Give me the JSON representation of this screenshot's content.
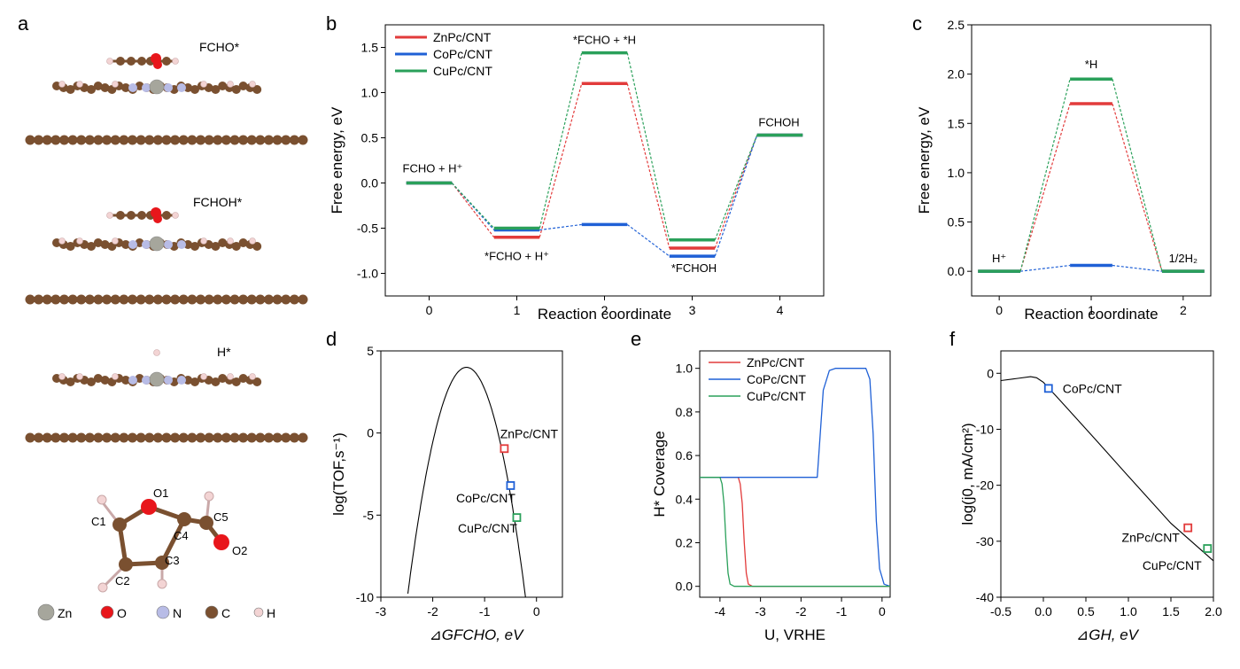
{
  "panels": {
    "a": {
      "letter": "a",
      "labels": [
        "FCHO*",
        "FCHOH*",
        "H*"
      ],
      "atom_labels": [
        "O1",
        "C1",
        "C2",
        "C3",
        "C4",
        "C5",
        "O2"
      ],
      "legend": [
        {
          "name": "Zn",
          "color": "#a6a69c"
        },
        {
          "name": "O",
          "color": "#e8161b"
        },
        {
          "name": "N",
          "color": "#b8bce6"
        },
        {
          "name": "C",
          "color": "#7a5030"
        },
        {
          "name": "H",
          "color": "#f3d4d4"
        }
      ]
    }
  },
  "colors": {
    "zn": "#e23b3b",
    "co": "#1f60d6",
    "cu": "#2aa05a",
    "line": "#000000"
  },
  "chart_data": [
    {
      "panel": "b",
      "type": "line",
      "xlabel": "Reaction coordinate",
      "ylabel": "Free energy, eV",
      "xlim": [
        -0.5,
        4.5
      ],
      "ylim": [
        -1.25,
        1.75
      ],
      "xticks": [
        0,
        1,
        2,
        3,
        4
      ],
      "yticks": [
        -1.0,
        -0.5,
        0.0,
        0.5,
        1.0,
        1.5
      ],
      "grid": false,
      "legend_position": "top-left",
      "series": [
        {
          "name": "ZnPc/CNT",
          "color": "#e23b3b",
          "x": [
            0,
            1,
            2,
            3,
            4
          ],
          "y": [
            0.0,
            -0.6,
            1.1,
            -0.72,
            0.53
          ]
        },
        {
          "name": "CoPc/CNT",
          "color": "#1f60d6",
          "x": [
            0,
            1,
            2,
            3,
            4
          ],
          "y": [
            0.0,
            -0.52,
            -0.46,
            -0.81,
            0.53
          ]
        },
        {
          "name": "CuPc/CNT",
          "color": "#2aa05a",
          "x": [
            0,
            1,
            2,
            3,
            4
          ],
          "y": [
            0.0,
            -0.5,
            1.44,
            -0.63,
            0.53
          ]
        }
      ],
      "annotations": [
        {
          "text": "FCHO + H⁺",
          "x": 0,
          "y": 0.0
        },
        {
          "text": "*FCHO + H⁺",
          "x": 1,
          "y": -0.6
        },
        {
          "text": "*FCHO + *H",
          "x": 2,
          "y": 1.44
        },
        {
          "text": "*FCHOH",
          "x": 3,
          "y": -0.81
        },
        {
          "text": "FCHOH",
          "x": 4,
          "y": 0.53
        }
      ]
    },
    {
      "panel": "c",
      "type": "line",
      "xlabel": "Reaction coordinate",
      "ylabel": "Free energy, eV",
      "xlim": [
        -0.3,
        2.3
      ],
      "ylim": [
        -0.25,
        2.5
      ],
      "xticks": [
        0,
        1,
        2
      ],
      "yticks": [
        0.0,
        0.5,
        1.0,
        1.5,
        2.0,
        2.5
      ],
      "grid": false,
      "series": [
        {
          "name": "ZnPc/CNT",
          "color": "#e23b3b",
          "x": [
            0,
            1,
            2
          ],
          "y": [
            0.0,
            1.7,
            0.0
          ]
        },
        {
          "name": "CoPc/CNT",
          "color": "#1f60d6",
          "x": [
            0,
            1,
            2
          ],
          "y": [
            0.0,
            0.06,
            0.0
          ]
        },
        {
          "name": "CuPc/CNT",
          "color": "#2aa05a",
          "x": [
            0,
            1,
            2
          ],
          "y": [
            0.0,
            1.95,
            0.0
          ]
        }
      ],
      "annotations": [
        {
          "text": "H⁺",
          "x": 0,
          "y": 0.0
        },
        {
          "text": "*H",
          "x": 1,
          "y": 1.95
        },
        {
          "text": "1/2H₂",
          "x": 2,
          "y": 0.0
        }
      ]
    },
    {
      "panel": "d",
      "type": "scatter",
      "xlabel": "⊿GFCHO, eV",
      "ylabel": "log(TOF,s⁻¹)",
      "xlim": [
        -3,
        0.5
      ],
      "ylim": [
        -10,
        5
      ],
      "xticks": [
        -3,
        -2,
        -1,
        0
      ],
      "yticks": [
        -10,
        -5,
        0,
        5
      ],
      "grid": false,
      "curve": {
        "type": "parabola",
        "vertex_x": -1.35,
        "vertex_y": 4.0,
        "a": 10.8
      },
      "points": [
        {
          "name": "ZnPc/CNT",
          "x": -0.62,
          "y": -0.95,
          "color": "#e23b3b"
        },
        {
          "name": "CoPc/CNT",
          "x": -0.5,
          "y": -3.2,
          "color": "#1f60d6"
        },
        {
          "name": "CuPc/CNT",
          "x": -0.38,
          "y": -5.15,
          "color": "#2aa05a"
        }
      ]
    },
    {
      "panel": "e",
      "type": "line",
      "xlabel": "U, VRHE",
      "ylabel": "H* Coverage",
      "xlim": [
        -4.5,
        0.2
      ],
      "ylim": [
        -0.05,
        1.08
      ],
      "xticks": [
        -4,
        -3,
        -2,
        -1,
        0
      ],
      "yticks": [
        0.0,
        0.2,
        0.4,
        0.6,
        0.8,
        1.0
      ],
      "grid": false,
      "legend_position": "top-left",
      "series": [
        {
          "name": "ZnPc/CNT",
          "color": "#e23b3b",
          "x": [
            -4.5,
            -3.55,
            -3.5,
            -3.45,
            -3.4,
            -3.35,
            -3.3,
            -3.2,
            0.2
          ],
          "y": [
            0.5,
            0.5,
            0.47,
            0.38,
            0.2,
            0.06,
            0.01,
            0.0,
            0.0
          ]
        },
        {
          "name": "CoPc/CNT",
          "color": "#1f60d6",
          "x": [
            -4.5,
            -1.6,
            -1.45,
            -1.3,
            -1.15,
            -0.8,
            -0.4,
            -0.3,
            -0.22,
            -0.14,
            -0.06,
            0.05,
            0.2
          ],
          "y": [
            0.5,
            0.5,
            0.9,
            0.99,
            1.0,
            1.0,
            1.0,
            0.95,
            0.7,
            0.3,
            0.08,
            0.01,
            0.0
          ]
        },
        {
          "name": "CuPc/CNT",
          "color": "#2aa05a",
          "x": [
            -4.5,
            -4.0,
            -3.95,
            -3.9,
            -3.85,
            -3.8,
            -3.75,
            -3.65,
            0.2
          ],
          "y": [
            0.5,
            0.5,
            0.47,
            0.38,
            0.2,
            0.06,
            0.01,
            0.0,
            0.0
          ]
        }
      ]
    },
    {
      "panel": "f",
      "type": "scatter",
      "xlabel": "⊿GH, eV",
      "ylabel": "log(j0, mA/cm²)",
      "xlim": [
        -0.5,
        2.0
      ],
      "ylim": [
        -40,
        4
      ],
      "xticks": [
        -0.5,
        0.0,
        0.5,
        1.0,
        1.5,
        2.0
      ],
      "xtick_labels": [
        "-0.5",
        "0.0",
        "0.5",
        "1.0",
        "1.5",
        "2.0"
      ],
      "yticks": [
        -40,
        -30,
        -20,
        -10,
        0
      ],
      "grid": false,
      "curve": {
        "x": [
          -0.5,
          -0.3,
          -0.15,
          -0.08,
          0.0,
          0.2,
          0.6,
          1.0,
          1.5,
          2.0
        ],
        "y": [
          -1.3,
          -0.9,
          -0.6,
          -0.8,
          -1.6,
          -4.9,
          -11.6,
          -18.4,
          -26.8,
          -33.5
        ]
      },
      "points": [
        {
          "name": "CoPc/CNT",
          "x": 0.06,
          "y": -2.7,
          "color": "#1f60d6"
        },
        {
          "name": "ZnPc/CNT",
          "x": 1.7,
          "y": -27.6,
          "color": "#e23b3b"
        },
        {
          "name": "CuPc/CNT",
          "x": 1.93,
          "y": -31.3,
          "color": "#2aa05a"
        }
      ]
    }
  ]
}
